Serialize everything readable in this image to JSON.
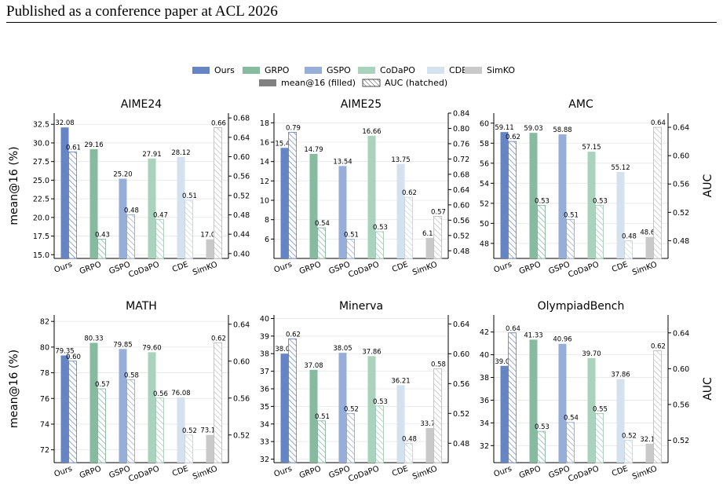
{
  "header": {
    "text": "Published as a conference paper at ACL 2026"
  },
  "colors": {
    "Ours": "#6585c4",
    "GRPO": "#86bba0",
    "GSPO": "#97afd8",
    "CoDaPO": "#a9d3bd",
    "CDE": "#d4e1ef",
    "SimKO": "#c9c9c9"
  },
  "legend": {
    "methods": [
      "Ours",
      "GRPO",
      "GSPO",
      "CoDaPO",
      "CDE",
      "SimKO"
    ],
    "mean_label": "mean@16 (filled)",
    "auc_label": "AUC (hatched)"
  },
  "chart_data": [
    {
      "type": "bar",
      "title": "AIME24",
      "categories": [
        "Ours",
        "GRPO",
        "GSPO",
        "CoDaPO",
        "CDE",
        "SimKO"
      ],
      "series": [
        {
          "name": "mean@16 (filled)",
          "values": [
            32.08,
            29.16,
            25.2,
            27.91,
            28.12,
            17.06
          ]
        },
        {
          "name": "AUC (hatched)",
          "values": [
            0.61,
            0.43,
            0.48,
            0.47,
            0.51,
            0.66
          ]
        }
      ],
      "ylabel": "mean@16 (%)",
      "y2label": "",
      "ylim": [
        14.5,
        34.0
      ],
      "yticks": [
        15.0,
        17.5,
        20.0,
        22.5,
        25.0,
        27.5,
        30.0,
        32.5
      ],
      "ydec": 1,
      "y2lim": [
        0.39,
        0.69
      ],
      "y2ticks": [
        0.4,
        0.44,
        0.48,
        0.52,
        0.56,
        0.6,
        0.64,
        0.68
      ]
    },
    {
      "type": "bar",
      "title": "AIME25",
      "categories": [
        "Ours",
        "GRPO",
        "GSPO",
        "CoDaPO",
        "CDE",
        "SimKO"
      ],
      "series": [
        {
          "name": "mean@16 (filled)",
          "values": [
            15.41,
            14.79,
            13.54,
            16.66,
            13.75,
            6.12
          ]
        },
        {
          "name": "AUC (hatched)",
          "values": [
            0.79,
            0.54,
            0.51,
            0.53,
            0.62,
            0.57
          ]
        }
      ],
      "ylabel": "",
      "y2label": "",
      "ylim": [
        4.0,
        19.0
      ],
      "yticks": [
        6,
        8,
        10,
        12,
        14,
        16,
        18
      ],
      "ydec": 0,
      "y2lim": [
        0.46,
        0.84
      ],
      "y2ticks": [
        0.48,
        0.52,
        0.56,
        0.6,
        0.64,
        0.68,
        0.72,
        0.76,
        0.8,
        0.84
      ]
    },
    {
      "type": "bar",
      "title": "AMC",
      "categories": [
        "Ours",
        "GRPO",
        "GSPO",
        "CoDaPO",
        "CDE",
        "SimKO"
      ],
      "series": [
        {
          "name": "mean@16 (filled)",
          "values": [
            59.11,
            59.03,
            58.88,
            57.15,
            55.12,
            48.64
          ]
        },
        {
          "name": "AUC (hatched)",
          "values": [
            0.62,
            0.53,
            0.51,
            0.53,
            0.48,
            0.64
          ]
        }
      ],
      "ylabel": "",
      "y2label": "AUC",
      "ylim": [
        46.5,
        61.0
      ],
      "yticks": [
        48,
        50,
        52,
        54,
        56,
        58,
        60
      ],
      "ydec": 0,
      "y2lim": [
        0.455,
        0.66
      ],
      "y2ticks": [
        0.48,
        0.52,
        0.56,
        0.6,
        0.64
      ]
    },
    {
      "type": "bar",
      "title": "MATH",
      "categories": [
        "Ours",
        "GRPO",
        "GSPO",
        "CoDaPO",
        "CDE",
        "SimKO"
      ],
      "series": [
        {
          "name": "mean@16 (filled)",
          "values": [
            79.35,
            80.33,
            79.85,
            79.6,
            76.08,
            73.16
          ]
        },
        {
          "name": "AUC (hatched)",
          "values": [
            0.6,
            0.57,
            0.58,
            0.56,
            0.52,
            0.62
          ]
        }
      ],
      "ylabel": "mean@16 (%)",
      "y2label": "",
      "ylim": [
        71.0,
        82.5
      ],
      "yticks": [
        72,
        74,
        76,
        78,
        80,
        82
      ],
      "ydec": 0,
      "y2lim": [
        0.49,
        0.65
      ],
      "y2ticks": [
        0.52,
        0.56,
        0.6,
        0.64
      ]
    },
    {
      "type": "bar",
      "title": "Minerva",
      "categories": [
        "Ours",
        "GRPO",
        "GSPO",
        "CoDaPO",
        "CDE",
        "SimKO"
      ],
      "series": [
        {
          "name": "mean@16 (filled)",
          "values": [
            38.0,
            37.08,
            38.05,
            37.86,
            36.21,
            33.77
          ]
        },
        {
          "name": "AUC (hatched)",
          "values": [
            0.62,
            0.51,
            0.52,
            0.53,
            0.48,
            0.58
          ]
        }
      ],
      "ylabel": "",
      "y2label": "",
      "ylim": [
        31.8,
        40.2
      ],
      "yticks": [
        32,
        33,
        34,
        35,
        36,
        37,
        38,
        39,
        40
      ],
      "ydec": 0,
      "y2lim": [
        0.454,
        0.652
      ],
      "y2ticks": [
        0.48,
        0.52,
        0.56,
        0.6,
        0.64
      ]
    },
    {
      "type": "bar",
      "title": "OlympiadBench",
      "categories": [
        "Ours",
        "GRPO",
        "GSPO",
        "CoDaPO",
        "CDE",
        "SimKO"
      ],
      "series": [
        {
          "name": "mean@16 (filled)",
          "values": [
            39.02,
            41.33,
            40.96,
            39.7,
            37.86,
            32.16
          ]
        },
        {
          "name": "AUC (hatched)",
          "values": [
            0.64,
            0.53,
            0.54,
            0.55,
            0.52,
            0.62
          ]
        }
      ],
      "ylabel": "",
      "y2label": "AUC",
      "ylim": [
        30.5,
        43.5
      ],
      "yticks": [
        32,
        34,
        36,
        38,
        40,
        42
      ],
      "ydec": 0,
      "y2lim": [
        0.495,
        0.66
      ],
      "y2ticks": [
        0.52,
        0.56,
        0.6,
        0.64
      ]
    }
  ]
}
